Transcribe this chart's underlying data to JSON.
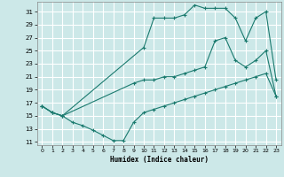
{
  "xlabel": "Humidex (Indice chaleur)",
  "bg_color": "#cce8e8",
  "grid_color": "#ffffff",
  "line_color": "#1a7a6e",
  "xlim": [
    -0.5,
    23.5
  ],
  "ylim": [
    10.5,
    32.5
  ],
  "xticks": [
    0,
    1,
    2,
    3,
    4,
    5,
    6,
    7,
    8,
    9,
    10,
    11,
    12,
    13,
    14,
    15,
    16,
    17,
    18,
    19,
    20,
    21,
    22,
    23
  ],
  "yticks": [
    11,
    13,
    15,
    17,
    19,
    21,
    23,
    25,
    27,
    29,
    31
  ],
  "series": [
    {
      "x": [
        0,
        1,
        2,
        3,
        4,
        5,
        6,
        7,
        8,
        9,
        10,
        11,
        12,
        13,
        14,
        15,
        16,
        17,
        18,
        19,
        20,
        21,
        22,
        23
      ],
      "y": [
        16.5,
        15.5,
        15.0,
        14.0,
        13.5,
        12.8,
        12.0,
        11.2,
        11.2,
        14.0,
        15.5,
        16.0,
        16.5,
        17.0,
        17.5,
        18.0,
        18.5,
        19.0,
        19.5,
        20.0,
        20.5,
        21.0,
        21.5,
        18.0
      ]
    },
    {
      "x": [
        0,
        1,
        2,
        10,
        11,
        12,
        13,
        14,
        15,
        16,
        17,
        18,
        19,
        20,
        21,
        22,
        23
      ],
      "y": [
        16.5,
        15.5,
        15.0,
        25.5,
        30.0,
        30.0,
        30.0,
        30.5,
        32.0,
        31.5,
        31.5,
        31.5,
        30.0,
        26.5,
        30.0,
        31.0,
        20.5
      ]
    },
    {
      "x": [
        0,
        1,
        2,
        9,
        10,
        11,
        12,
        13,
        14,
        15,
        16,
        17,
        18,
        19,
        20,
        21,
        22,
        23
      ],
      "y": [
        16.5,
        15.5,
        15.0,
        20.0,
        20.5,
        20.5,
        21.0,
        21.0,
        21.5,
        22.0,
        22.5,
        26.5,
        27.0,
        23.5,
        22.5,
        23.5,
        25.0,
        18.0
      ]
    }
  ]
}
